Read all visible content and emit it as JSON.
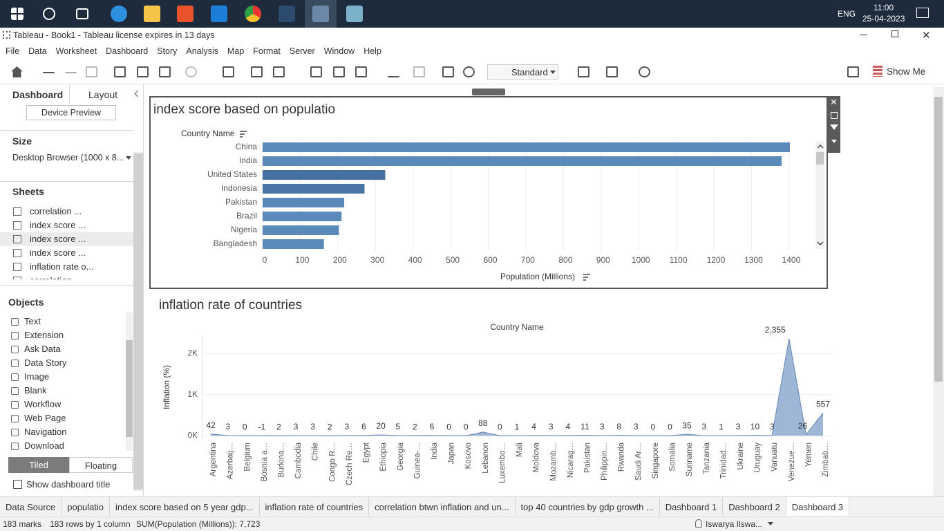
{
  "taskbar": {
    "language": "ENG",
    "time": "11:00",
    "date": "25-04-2023"
  },
  "window": {
    "title": "Tableau - Book1 - Tableau license expires in 13 days"
  },
  "menu": [
    "File",
    "Data",
    "Worksheet",
    "Dashboard",
    "Story",
    "Analysis",
    "Map",
    "Format",
    "Server",
    "Window",
    "Help"
  ],
  "toolbar": {
    "fit": "Standard",
    "show_me": "Show Me"
  },
  "side_panel": {
    "tabs": [
      "Dashboard",
      "Layout"
    ],
    "device_preview": "Device Preview",
    "size": {
      "heading": "Size",
      "value": "Desktop Browser (1000 x 8..."
    },
    "sheets": {
      "heading": "Sheets",
      "items": [
        "correlation ...",
        "index score ...",
        "index score ...",
        "index score ...",
        "inflation rate o...",
        "correlation ..."
      ]
    },
    "objects": {
      "heading": "Objects",
      "items": [
        "Text",
        "Extension",
        "Ask Data",
        "Data Story",
        "Image",
        "Blank",
        "Workflow",
        "Web Page",
        "Navigation",
        "Download"
      ]
    },
    "layout_modes": [
      "Tiled",
      "Floating"
    ],
    "show_title": "Show dashboard title"
  },
  "chart_data": [
    {
      "type": "bar",
      "orientation": "horizontal",
      "title": "index score based on populatio",
      "y_label": "Country Name",
      "x_label": "Population (Millions)",
      "categories": [
        "China",
        "India",
        "United States",
        "Indonesia",
        "Pakistan",
        "Brazil",
        "Nigeria",
        "Bangladesh"
      ],
      "values": [
        1402,
        1380,
        326,
        271,
        217,
        210,
        203,
        163
      ],
      "colors": [
        "#5b89b8",
        "#5b89b8",
        "#46709f",
        "#4a76a6",
        "#5b89b8",
        "#5b89b8",
        "#5b89b8",
        "#5b89b8"
      ],
      "xlim": [
        0,
        1470
      ],
      "xticks": [
        0,
        100,
        200,
        300,
        400,
        500,
        600,
        700,
        800,
        900,
        1000,
        1100,
        1200,
        1300,
        1400
      ],
      "grid": true
    },
    {
      "type": "area",
      "title": "inflation rate of countries",
      "x_label": "Country Name",
      "y_label": "Inflation (%)",
      "categories": [
        "Argentina",
        "Azerbaij…",
        "Belgium",
        "Bosnia a…",
        "Burkina…",
        "Cambodia",
        "Chile",
        "Congo R…",
        "Czech Re…",
        "Egypt",
        "Ethiopia",
        "Georgia",
        "Guinea-…",
        "India",
        "Japan",
        "Kosovo",
        "Lebanon",
        "Luxembo…",
        "Mali",
        "Moldova",
        "Mozamb…",
        "Nicarag…",
        "Pakistan",
        "Philippin…",
        "Rwanda",
        "Saudi Ar…",
        "Singapore",
        "Somalia",
        "Suriname",
        "Tanzania",
        "Trinidad…",
        "Ukraine",
        "Uruguay",
        "Vanuatu",
        "Venezue…",
        "Yemen",
        "Zimbab…"
      ],
      "values": [
        42,
        3,
        0,
        -1,
        2,
        3,
        3,
        2,
        3,
        6,
        20,
        5,
        2,
        6,
        0,
        0,
        88,
        0,
        1,
        4,
        3,
        4,
        11,
        3,
        8,
        3,
        0,
        0,
        35,
        3,
        1,
        3,
        10,
        3,
        2355,
        26,
        557
      ],
      "value_labels": [
        "42",
        "3",
        "0",
        "-1",
        "2",
        "3",
        "3",
        "2",
        "3",
        "6",
        "20",
        "5",
        "2",
        "6",
        "0",
        "0",
        "88",
        "0",
        "1",
        "4",
        "3",
        "4",
        "11",
        "3",
        "8",
        "3",
        "0",
        "0",
        "35",
        "3",
        "1",
        "3",
        "10",
        "3",
        "2,355",
        "26",
        "557"
      ],
      "color": "#8eaacf",
      "ylim": [
        -80,
        2440
      ],
      "yticks": [
        {
          "value": 0,
          "label": "0K"
        },
        {
          "value": 1000,
          "label": "1K"
        },
        {
          "value": 2000,
          "label": "2K"
        }
      ],
      "grid": true
    }
  ],
  "sheet_tabs": [
    "Data Source",
    "populatio",
    "index score based on 5 year gdp...",
    "inflation rate of countries",
    "correlation btwn inflation and un...",
    "top 40 countries by gdp growth ...",
    "Dashboard 1",
    "Dashboard 2",
    "Dashboard 3"
  ],
  "status_bar": {
    "items": [
      "183 marks",
      "183 rows by 1 column",
      "SUM(Population (Millions)): 7,723"
    ],
    "user": "Iswarya Ilswa..."
  }
}
